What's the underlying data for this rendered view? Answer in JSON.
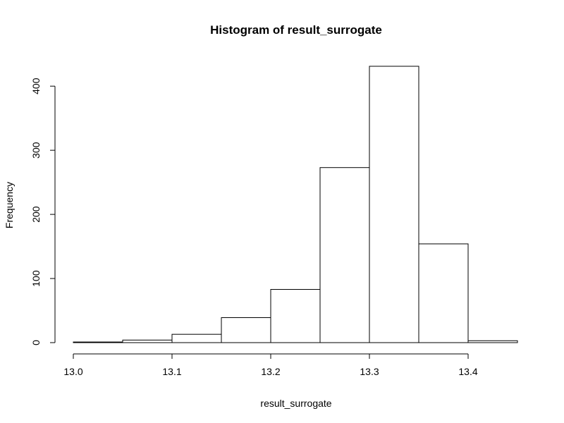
{
  "chart_data": {
    "type": "bar",
    "title": "Histogram of result_surrogate",
    "xlabel": "result_surrogate",
    "ylabel": "Frequency",
    "bins": [
      {
        "start": 13.0,
        "end": 13.05,
        "count": 1
      },
      {
        "start": 13.05,
        "end": 13.1,
        "count": 4
      },
      {
        "start": 13.1,
        "end": 13.15,
        "count": 13
      },
      {
        "start": 13.15,
        "end": 13.2,
        "count": 39
      },
      {
        "start": 13.2,
        "end": 13.25,
        "count": 83
      },
      {
        "start": 13.25,
        "end": 13.3,
        "count": 273
      },
      {
        "start": 13.3,
        "end": 13.35,
        "count": 431
      },
      {
        "start": 13.35,
        "end": 13.4,
        "count": 154
      },
      {
        "start": 13.4,
        "end": 13.45,
        "count": 3
      }
    ],
    "xlim": [
      13.0,
      13.45
    ],
    "ylim": [
      0,
      431
    ],
    "x_ticks": [
      "13.0",
      "13.1",
      "13.2",
      "13.3",
      "13.4"
    ],
    "y_ticks": [
      "0",
      "100",
      "200",
      "300",
      "400"
    ],
    "grid": false,
    "bar_fill": "#ffffff",
    "bar_stroke": "#000000"
  }
}
